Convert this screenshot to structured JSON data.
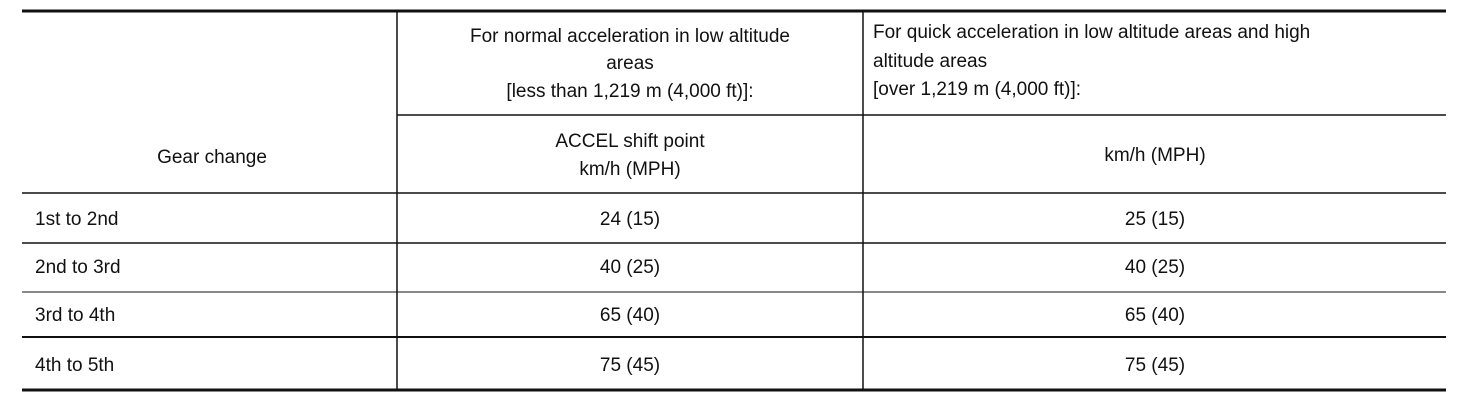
{
  "table": {
    "header": [
      [
        "For normal acceleration in low altitude",
        "areas",
        "[less than 1,219 m (4,000 ft)]:"
      ],
      [
        "For quick acceleration in low altitude areas and high",
        "altitude areas",
        "[over 1,219 m (4,000 ft)]:"
      ]
    ],
    "subheader": [
      "Gear change",
      [
        "ACCEL shift point",
        "km/h (MPH)"
      ],
      "km/h (MPH)"
    ],
    "rows": [
      [
        "1st to 2nd",
        "24 (15)",
        "25 (15)"
      ],
      [
        "2nd to 3rd",
        "40 (25)",
        "40 (25)"
      ],
      [
        "3rd to 4th",
        "65 (40)",
        "65 (40)"
      ],
      [
        "4th to 5th",
        "75 (45)",
        "75 (45)"
      ]
    ]
  }
}
